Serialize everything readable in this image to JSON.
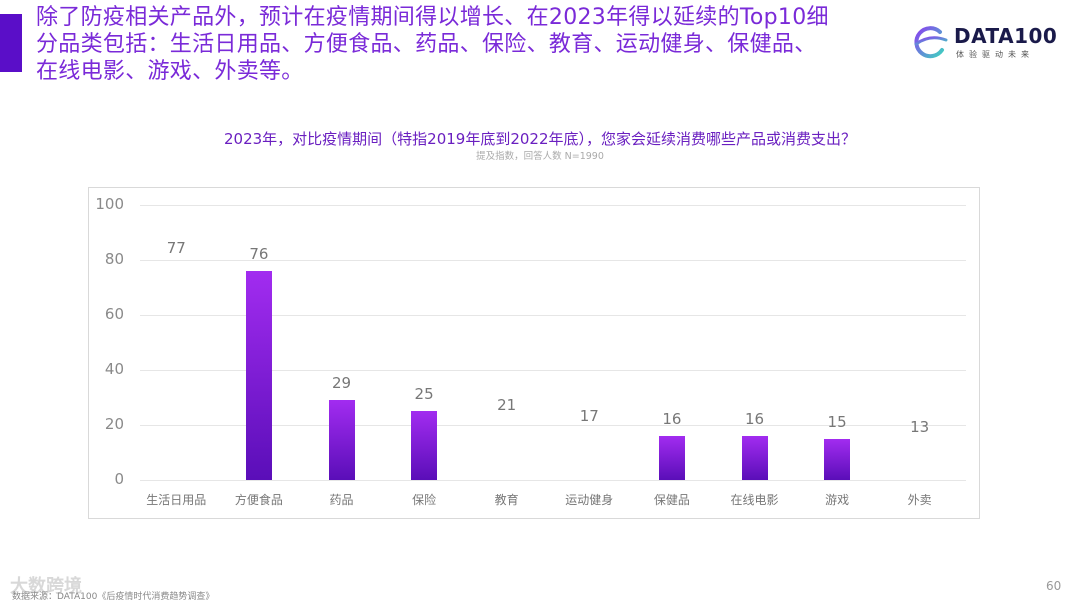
{
  "headline": {
    "lines": [
      "除了防疫相关产品外，预计在疫情期间得以增长、在2023年得以延续的Top10细",
      "分品类包括：生活日用品、方便食品、药品、保险、教育、运动健身、保健品、",
      "在线电影、游戏、外卖等。"
    ]
  },
  "logo": {
    "name": "DATA100",
    "tagline": "体验驱动未来"
  },
  "colors": {
    "accent": "#5a0ec8",
    "bar_top": "#a22cf0",
    "bar_bottom": "#5a0eb8",
    "headline": "#7a2ad8"
  },
  "chart_data": {
    "type": "bar",
    "title": "2023年，对比疫情期间（特指2019年底到2022年底），您家会延续消费哪些产品或消费支出？",
    "subtitle": "提及指数，回答人数 N=1990",
    "categories": [
      "生活日用品",
      "方便食品",
      "药品",
      "保险",
      "教育",
      "运动健身",
      "保健品",
      "在线电影",
      "游戏",
      "外卖"
    ],
    "values": [
      77,
      76,
      29,
      25,
      21,
      17,
      16,
      16,
      15,
      13
    ],
    "bars_rendered": [
      false,
      true,
      true,
      true,
      false,
      false,
      true,
      true,
      true,
      false
    ],
    "ylim": [
      0,
      100
    ],
    "yticks": [
      "100",
      "80",
      "60",
      "40",
      "20",
      "0"
    ],
    "xlabel": "",
    "ylabel": "",
    "grid": true,
    "legend": "none"
  },
  "footer": {
    "source": "数据来源：DATA100《后疫情时代消费趋势调查》",
    "watermark": "大数跨境",
    "page_number": "60"
  }
}
